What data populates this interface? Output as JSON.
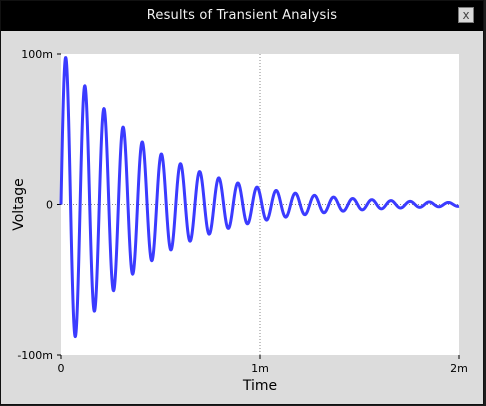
{
  "window": {
    "title": "Results of Transient Analysis",
    "close_glyph": "x"
  },
  "chart_data": {
    "type": "line",
    "title": "",
    "xlabel": "Time",
    "ylabel": "Voltage",
    "xlim": [
      0,
      0.002
    ],
    "ylim": [
      -0.1,
      0.1
    ],
    "x_ticks": [
      {
        "value": 0,
        "label": "0"
      },
      {
        "value": 0.001,
        "label": "1m"
      },
      {
        "value": 0.002,
        "label": "2m"
      }
    ],
    "y_ticks": [
      {
        "value": 0.1,
        "label": "100m"
      },
      {
        "value": 0,
        "label": "0"
      },
      {
        "value": -0.1,
        "label": "-100m"
      }
    ],
    "grid": true,
    "series": [
      {
        "color": "#3b3bff",
        "signal": {
          "form": "damped_sine",
          "amplitude": 0.103,
          "decay_time_constant": 0.00045,
          "frequency": 10400,
          "start": 0,
          "stop": 0.002
        }
      }
    ],
    "colors": {
      "plot_background": "#ffffff",
      "window_background": "#dcdcdc"
    }
  }
}
